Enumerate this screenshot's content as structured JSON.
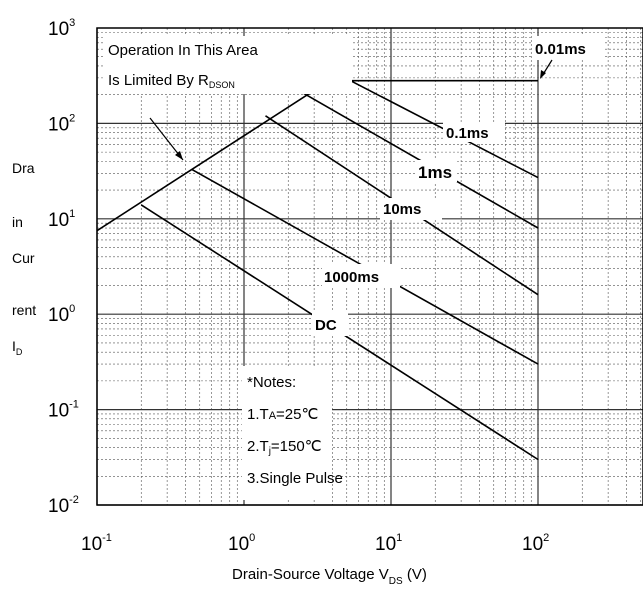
{
  "chart_data": {
    "type": "line",
    "x_scale": "log",
    "y_scale": "log",
    "xlim": [
      0.1,
      1000
    ],
    "ylim": [
      0.01,
      1000
    ],
    "x_ticks": [
      "10",
      "10",
      "10",
      "10"
    ],
    "x_tick_exponents": [
      "-1",
      "0",
      "1",
      "2"
    ],
    "y_ticks": [
      "10",
      "10",
      "10",
      "10",
      "10",
      "10"
    ],
    "y_tick_exponents": [
      "-2",
      "-1",
      "0",
      "1",
      "2",
      "3"
    ],
    "ylabel_lines": [
      "Dra",
      "in",
      "Cur",
      "rent",
      "I"
    ],
    "ylabel_sub": "D",
    "xlabel": "Drain-Source Voltage V",
    "xlabel_sub": "DS",
    "xlabel_unit": " (V)",
    "grid": true,
    "series": [
      {
        "name": "Limited By RDSON",
        "x": [
          0.1,
          3.8
        ],
        "y": [
          7.5,
          280
        ]
      },
      {
        "name": "0.01ms",
        "x": [
          3.8,
          100
        ],
        "y": [
          280,
          280
        ]
      },
      {
        "name": "0.1ms",
        "x": [
          5.3,
          100
        ],
        "y": [
          280,
          27
        ]
      },
      {
        "name": "1ms",
        "x": [
          2.5,
          100
        ],
        "y": [
          210,
          8
        ]
      },
      {
        "name": "10ms",
        "x": [
          1.4,
          100
        ],
        "y": [
          120,
          1.6
        ]
      },
      {
        "name": "1000ms",
        "x": [
          0.44,
          100
        ],
        "y": [
          33,
          0.3
        ]
      },
      {
        "name": "DC",
        "x": [
          0.2,
          100
        ],
        "y": [
          14,
          0.03
        ]
      }
    ]
  },
  "annotations": {
    "area_line1": "Operation In This Area",
    "area_line2": "Is Limited By R",
    "area_sub": "DSON",
    "label_001": "0.01ms",
    "label_01": "0.1ms",
    "label_1": "1ms",
    "label_10": "10ms",
    "label_1000": "1000ms",
    "label_dc": "DC",
    "notes_title": "*Notes:",
    "note1_pre": "1.T",
    "note1_sub": "A",
    "note1_post": "=25℃",
    "note2_pre": "2.T",
    "note2_sub": "j",
    "note2_post": "=150℃",
    "note3": "3.Single Pulse"
  },
  "colors": {
    "line": "#000000",
    "grid": "#555555",
    "background": "#ffffff"
  }
}
